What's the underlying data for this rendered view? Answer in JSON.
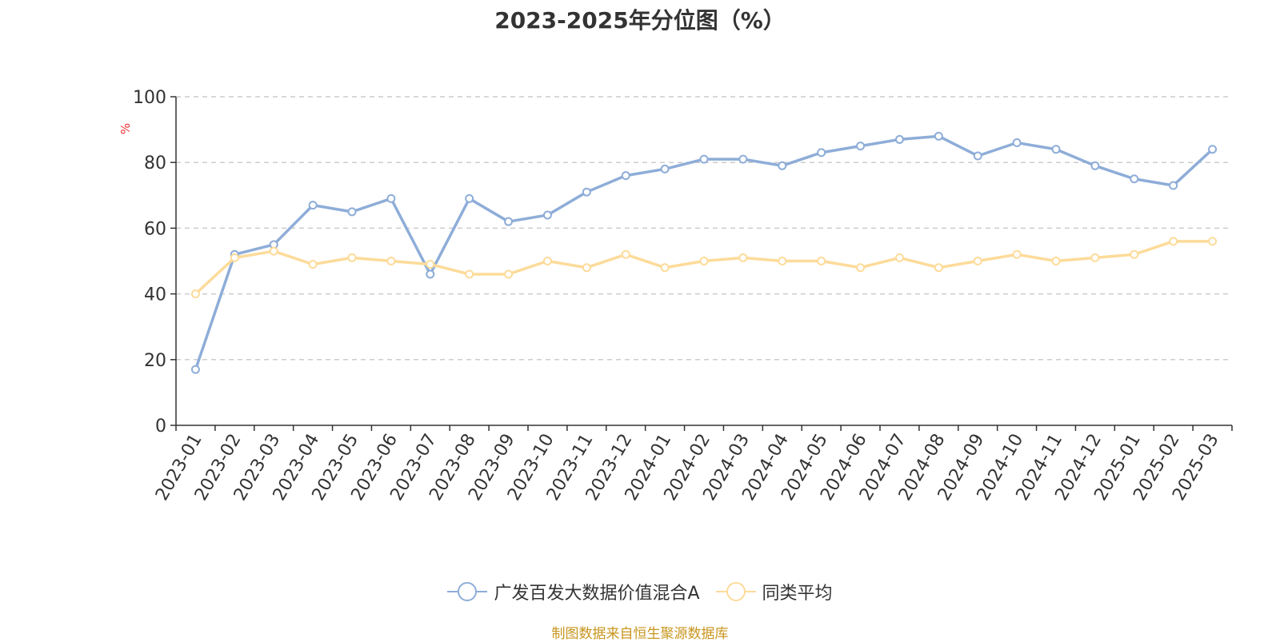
{
  "title": "2023-2025年分位图（%）",
  "source": "制图数据来自恒生聚源数据库",
  "chart_data": {
    "type": "line",
    "title": "2023-2025年分位图（%）",
    "ylabel": "%",
    "xlabel": "",
    "ylim": [
      0,
      100
    ],
    "yticks": [
      0,
      20,
      40,
      60,
      80,
      100
    ],
    "grid": true,
    "legend_position": "bottom",
    "categories": [
      "2023-01",
      "2023-02",
      "2023-03",
      "2023-04",
      "2023-05",
      "2023-06",
      "2023-07",
      "2023-08",
      "2023-09",
      "2023-10",
      "2023-11",
      "2023-12",
      "2024-01",
      "2024-02",
      "2024-03",
      "2024-04",
      "2024-05",
      "2024-06",
      "2024-07",
      "2024-08",
      "2024-09",
      "2024-10",
      "2024-11",
      "2024-12",
      "2025-01",
      "2025-02",
      "2025-03"
    ],
    "series": [
      {
        "name": "广发百发大数据价值混合A",
        "color": "#8eadd8",
        "values": [
          17,
          52,
          55,
          67,
          65,
          69,
          46,
          69,
          62,
          64,
          71,
          76,
          78,
          81,
          81,
          79,
          83,
          85,
          87,
          88,
          82,
          86,
          84,
          79,
          75,
          73,
          84
        ]
      },
      {
        "name": "同类平均",
        "color": "#fddb9a",
        "values": [
          40,
          51,
          53,
          49,
          51,
          50,
          49,
          46,
          46,
          50,
          48,
          52,
          48,
          50,
          51,
          50,
          50,
          48,
          51,
          48,
          50,
          52,
          50,
          51,
          52,
          56,
          56
        ]
      }
    ]
  }
}
